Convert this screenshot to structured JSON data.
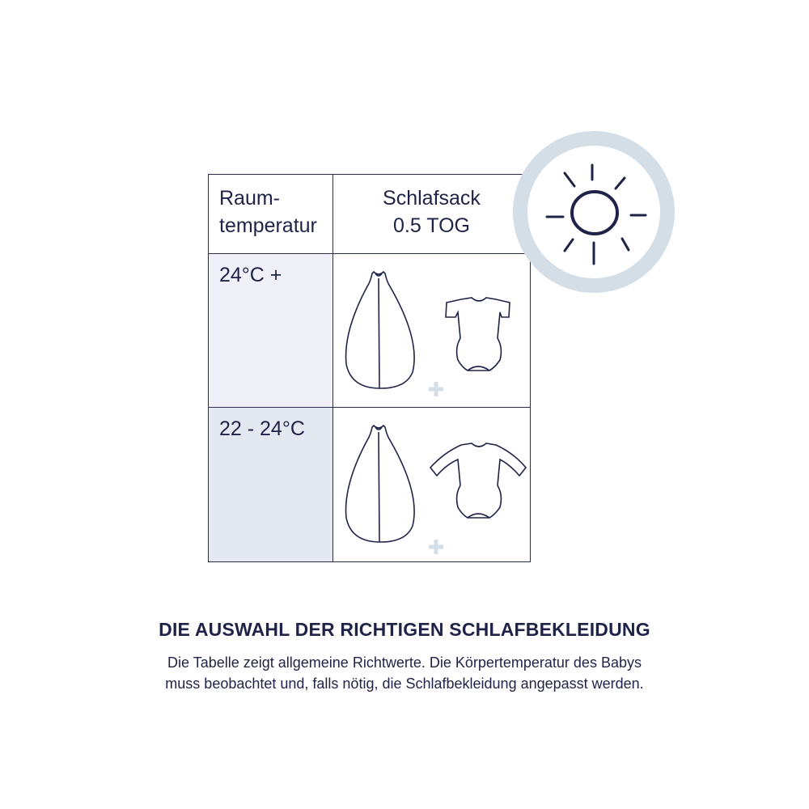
{
  "table": {
    "header": {
      "col1": "Raum-\ntemperatur",
      "col1_line1": "Raum-",
      "col1_line2": "temperatur",
      "col2_line1": "Schlafsack",
      "col2_line2": "0.5 TOG"
    },
    "rows": [
      {
        "temperature": "24°C +",
        "items": [
          "sleeping-bag-icon",
          "short-sleeve-bodysuit-icon"
        ]
      },
      {
        "temperature": "22 - 24°C",
        "items": [
          "sleeping-bag-icon",
          "long-sleeve-bodysuit-icon"
        ]
      }
    ]
  },
  "footer": {
    "title": "DIE AUSWAHL DER RICHTIGEN SCHLAFBEKLEIDUNG",
    "line1": "Die Tabelle zeigt allgemeine Richtwerte. Die Körpertemperatur des Babys",
    "line2": "muss beobachtet und, falls nötig, die Schlafbekleidung angepasst werden."
  },
  "colors": {
    "text": "#1f2347",
    "row1_bg": "#f0f1f8",
    "row2_bg": "#e4e8f1",
    "accent": "#d3dee6"
  }
}
